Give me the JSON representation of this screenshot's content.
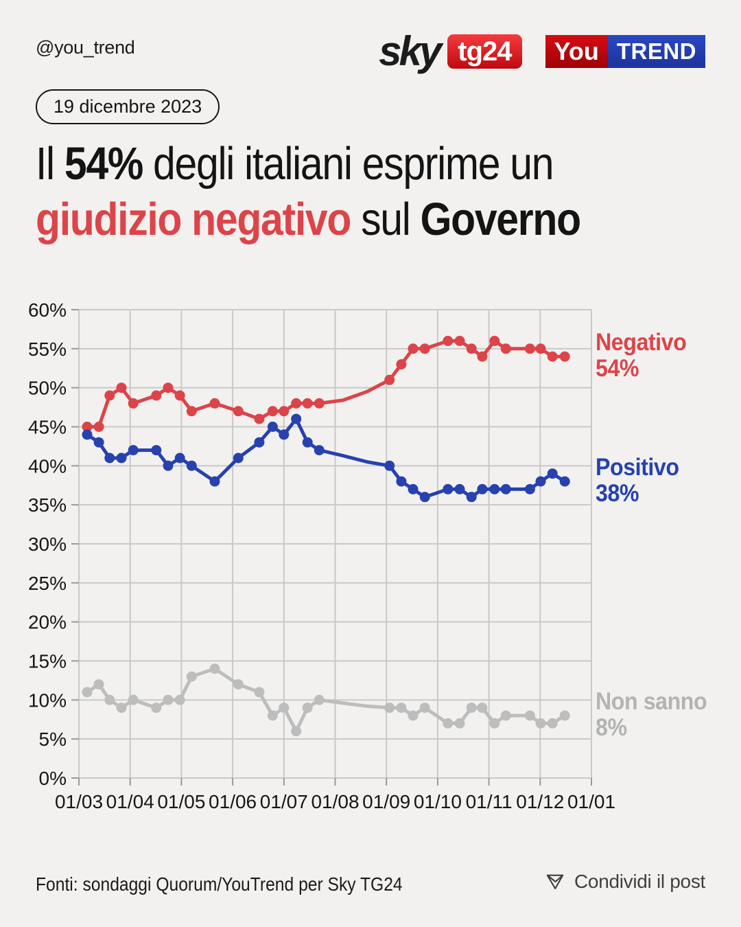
{
  "header": {
    "handle": "@you_trend",
    "date_badge": "19 dicembre 2023",
    "sky_logo": {
      "sky": "sky",
      "tg24": "tg24"
    },
    "youtrend_logo": {
      "you": "You",
      "trend": "TREND"
    }
  },
  "title": {
    "lines": [
      {
        "segments": [
          {
            "text": "Il ",
            "style": "normal"
          },
          {
            "text": "54%",
            "style": "bold"
          },
          {
            "text": " degli italiani esprime un",
            "style": "normal"
          }
        ]
      },
      {
        "segments": [
          {
            "text": "giudizio negativo",
            "style": "bold-red"
          },
          {
            "text": " sul ",
            "style": "normal"
          },
          {
            "text": "Governo",
            "style": "bold"
          }
        ]
      }
    ]
  },
  "chart_data": {
    "type": "line",
    "grid_color": "#C9C9C9",
    "tick_color": "#999999",
    "x_axis": {
      "labels": [
        "01/03",
        "01/04",
        "01/05",
        "01/06",
        "01/07",
        "01/08",
        "01/09",
        "01/10",
        "01/11",
        "01/12",
        "01/01"
      ],
      "unit": "months since 01/03 (x values below are fractional month positions)"
    },
    "y_axis": {
      "min": 0,
      "max": 60,
      "step": 5,
      "suffix": "%"
    },
    "series": [
      {
        "name": "Negativo",
        "value_label": "54%",
        "color": "#DC4449",
        "label_color": "#DC4449",
        "points": [
          [
            0.16,
            45,
            1
          ],
          [
            0.39,
            45,
            1
          ],
          [
            0.6,
            49,
            1
          ],
          [
            0.83,
            50,
            1
          ],
          [
            1.06,
            48,
            1
          ],
          [
            1.51,
            49,
            1
          ],
          [
            1.74,
            50,
            1
          ],
          [
            1.97,
            49,
            1
          ],
          [
            2.2,
            47,
            1
          ],
          [
            2.65,
            48,
            1
          ],
          [
            3.11,
            47,
            1
          ],
          [
            3.52,
            46,
            1
          ],
          [
            3.78,
            47,
            1
          ],
          [
            4.0,
            47,
            1
          ],
          [
            4.24,
            48,
            1
          ],
          [
            4.46,
            48,
            1
          ],
          [
            4.69,
            48,
            1
          ],
          [
            5.15,
            48.4,
            0
          ],
          [
            5.62,
            49.5,
            0
          ],
          [
            6.06,
            51,
            1
          ],
          [
            6.29,
            53,
            1
          ],
          [
            6.52,
            55,
            1
          ],
          [
            6.75,
            55,
            1
          ],
          [
            7.2,
            56,
            1
          ],
          [
            7.43,
            56,
            1
          ],
          [
            7.66,
            55,
            1
          ],
          [
            7.87,
            54,
            1
          ],
          [
            8.11,
            56,
            1
          ],
          [
            8.33,
            55,
            1
          ],
          [
            8.8,
            55,
            1
          ],
          [
            9.01,
            55,
            1
          ],
          [
            9.24,
            54,
            1
          ],
          [
            9.48,
            54,
            1
          ]
        ]
      },
      {
        "name": "Positivo",
        "value_label": "38%",
        "color": "#2741AE",
        "label_color": "#2741AE",
        "points": [
          [
            0.16,
            44,
            1
          ],
          [
            0.39,
            43,
            1
          ],
          [
            0.6,
            41,
            1
          ],
          [
            0.83,
            41,
            1
          ],
          [
            1.06,
            42,
            1
          ],
          [
            1.51,
            42,
            1
          ],
          [
            1.74,
            40,
            1
          ],
          [
            1.97,
            41,
            1
          ],
          [
            2.2,
            40,
            1
          ],
          [
            2.65,
            38,
            1
          ],
          [
            3.11,
            41,
            1
          ],
          [
            3.52,
            43,
            1
          ],
          [
            3.78,
            45,
            1
          ],
          [
            4.0,
            44,
            1
          ],
          [
            4.24,
            46,
            1
          ],
          [
            4.46,
            43,
            1
          ],
          [
            4.69,
            42,
            1
          ],
          [
            5.15,
            41.3,
            0
          ],
          [
            5.62,
            40.5,
            0
          ],
          [
            6.06,
            40,
            1
          ],
          [
            6.29,
            38,
            1
          ],
          [
            6.52,
            37,
            1
          ],
          [
            6.75,
            36,
            1
          ],
          [
            7.2,
            37,
            1
          ],
          [
            7.43,
            37,
            1
          ],
          [
            7.66,
            36,
            1
          ],
          [
            7.87,
            37,
            1
          ],
          [
            8.11,
            37,
            1
          ],
          [
            8.33,
            37,
            1
          ],
          [
            8.8,
            37,
            1
          ],
          [
            9.01,
            38,
            1
          ],
          [
            9.24,
            39,
            1
          ],
          [
            9.48,
            38,
            1
          ]
        ]
      },
      {
        "name": "Non sanno",
        "value_label": "8%",
        "color": "#BDBDBD",
        "label_color": "#B3B3B3",
        "points": [
          [
            0.16,
            11,
            1
          ],
          [
            0.39,
            12,
            1
          ],
          [
            0.6,
            10,
            1
          ],
          [
            0.83,
            9,
            1
          ],
          [
            1.06,
            10,
            1
          ],
          [
            1.51,
            9,
            1
          ],
          [
            1.74,
            10,
            1
          ],
          [
            1.97,
            10,
            1
          ],
          [
            2.2,
            13,
            1
          ],
          [
            2.65,
            14,
            1
          ],
          [
            3.11,
            12,
            1
          ],
          [
            3.52,
            11,
            1
          ],
          [
            3.78,
            8,
            1
          ],
          [
            4.0,
            9,
            1
          ],
          [
            4.24,
            6,
            1
          ],
          [
            4.46,
            9,
            1
          ],
          [
            4.69,
            10,
            1
          ],
          [
            5.15,
            9.6,
            0
          ],
          [
            5.62,
            9.2,
            0
          ],
          [
            6.06,
            9,
            1
          ],
          [
            6.29,
            9,
            1
          ],
          [
            6.52,
            8,
            1
          ],
          [
            6.75,
            9,
            1
          ],
          [
            7.2,
            7,
            1
          ],
          [
            7.43,
            7,
            1
          ],
          [
            7.66,
            9,
            1
          ],
          [
            7.87,
            9,
            1
          ],
          [
            8.11,
            7,
            1
          ],
          [
            8.33,
            8,
            1
          ],
          [
            8.8,
            8,
            1
          ],
          [
            9.01,
            7,
            1
          ],
          [
            9.24,
            7,
            1
          ],
          [
            9.48,
            8,
            1
          ]
        ]
      }
    ]
  },
  "footer": {
    "source": "Fonti: sondaggi Quorum/YouTrend per Sky TG24",
    "share_label": "Condividi il post"
  }
}
